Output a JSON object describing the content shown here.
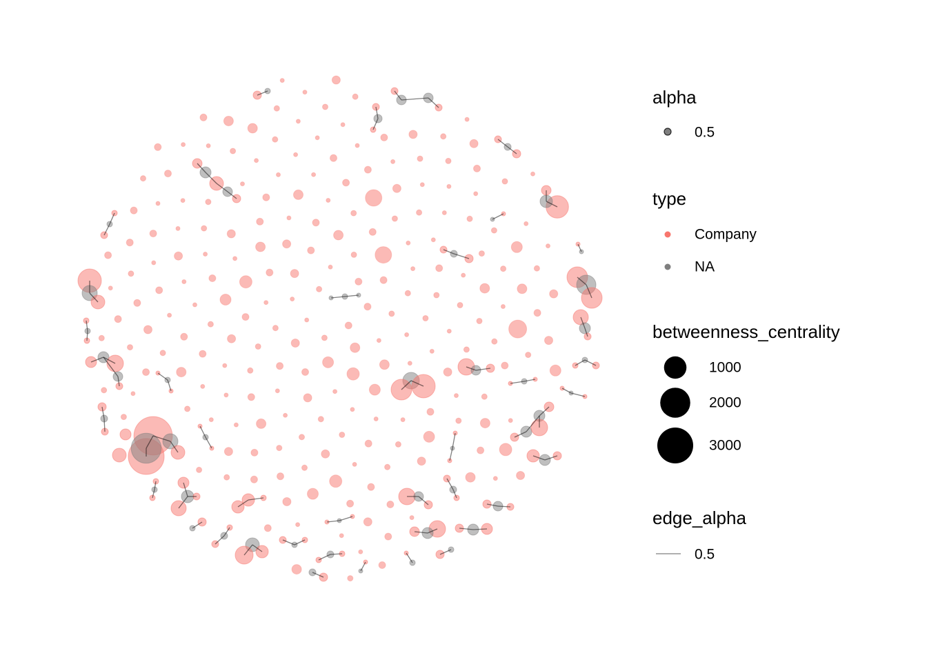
{
  "chart_data": {
    "type": "network",
    "nodes": {
      "type": [
        "Company",
        "Company",
        "NA",
        "NA",
        "Company",
        "Company",
        "Company",
        "Company",
        "NA",
        "Company",
        "Company",
        "NA",
        "Company",
        "NA",
        "Company",
        "Company",
        "Company",
        "NA",
        "Company",
        "Company",
        "NA",
        "Company",
        "NA",
        "Company",
        "NA",
        "Company",
        "Company",
        "NA",
        "Company",
        "NA",
        "NA",
        "Company",
        "Company",
        "Company",
        "NA",
        "Company",
        "NA",
        "Company",
        "Company",
        "NA",
        "Company",
        "Company",
        "Company",
        "Company",
        "NA",
        "Company",
        "Company",
        "NA",
        "Company",
        "Company",
        "NA",
        "Company",
        "NA",
        "NA",
        "Company",
        "Company",
        "Company",
        "NA",
        "Company",
        "Company",
        "NA",
        "Company",
        "Company",
        "NA",
        "Company",
        "Company",
        "NA",
        "NA",
        "NA",
        "NA",
        "Company",
        "Company",
        "NA",
        "Company",
        "Company",
        "NA",
        "Company",
        "NA",
        "Company",
        "Company",
        "NA",
        "Company",
        "Company",
        "NA",
        "Company",
        "Company",
        "NA",
        "Company",
        "Company",
        "NA",
        "Company",
        "Company",
        "NA",
        "Company",
        "Company",
        "NA",
        "Company",
        "Company",
        "NA",
        "Company",
        "Company",
        "NA",
        "Company",
        "Company",
        "NA",
        "Company",
        "Company",
        "NA",
        "Company",
        "NA",
        "Company",
        "NA",
        "Company",
        "Company",
        "NA",
        "Company",
        "Company",
        "NA",
        "Company",
        "Company",
        "Company",
        "NA",
        "NA",
        "Company",
        "Company",
        "Company",
        "Company",
        "Company",
        "NA",
        "Company",
        "Company",
        "NA",
        "Company",
        "NA",
        "Company",
        "NA",
        "Company",
        "NA",
        "Company",
        "NA",
        "Company",
        "Company"
      ],
      "betweenness_centrality": [
        3500,
        3000,
        2000,
        363,
        278,
        278,
        142,
        1111,
        363,
        278,
        816,
        686,
        816,
        459,
        816,
        1111,
        1000,
        204,
        91,
        91,
        142,
        278,
        91,
        51,
        142,
        459,
        142,
        91,
        23,
        91,
        91,
        23,
        23,
        363,
        142,
        23,
        278,
        567,
        204,
        204,
        363,
        142,
        23,
        459,
        91,
        51,
        459,
        91,
        51,
        459,
        142,
        91,
        142,
        142,
        51,
        459,
        91,
        142,
        204,
        51,
        91,
        51,
        23,
        142,
        142,
        51,
        6,
        0,
        0,
        23,
        23,
        51,
        51,
        23,
        6,
        6,
        51,
        23,
        23,
        51,
        6,
        6,
        23,
        6,
        6,
        6,
        23,
        51,
        23,
        6,
        6,
        6,
        6,
        0,
        0,
        6,
        0,
        0,
        6,
        0,
        0,
        6,
        6,
        23,
        0,
        0,
        0,
        0,
        0,
        0,
        0,
        0,
        0,
        0,
        23,
        23,
        6,
        23,
        23,
        6,
        51,
        6,
        6,
        23,
        6,
        204,
        6,
        204,
        23,
        6,
        6,
        23,
        51,
        0,
        0,
        6,
        0,
        6,
        51,
        0,
        0,
        0
      ]
    },
    "isolated_nodes": {
      "type": "Company",
      "betweenness_centrality": [
        23,
        6,
        91,
        0,
        23,
        142,
        6,
        0,
        51,
        23,
        204,
        0,
        6,
        23,
        0,
        91,
        6,
        23,
        0,
        51,
        0,
        23,
        6,
        142,
        0,
        6,
        51,
        23,
        0,
        6,
        459,
        0,
        23,
        6,
        0,
        91,
        23,
        0,
        6,
        51,
        0,
        6,
        23,
        0,
        204,
        6,
        0,
        23,
        51,
        0,
        6,
        91,
        0,
        23,
        6,
        0,
        142,
        23,
        6,
        0,
        51,
        0,
        6,
        23,
        0,
        6,
        91,
        0,
        23,
        6,
        0,
        51,
        23,
        6,
        0,
        459,
        6,
        23,
        0,
        6,
        91,
        0,
        23,
        6,
        0,
        51,
        6,
        0,
        23,
        142,
        0,
        6,
        23,
        0,
        51,
        6,
        0,
        91,
        23,
        0,
        6,
        23,
        0,
        204,
        6,
        0,
        23,
        51,
        0,
        6,
        23,
        0,
        6,
        91,
        0,
        23,
        6,
        0,
        51,
        23,
        0,
        6,
        142,
        0,
        23,
        6,
        0,
        51,
        6,
        23,
        0,
        91,
        6,
        0,
        23,
        6,
        567,
        0,
        23,
        6,
        51,
        0,
        6,
        23,
        0,
        91,
        6,
        0,
        23,
        51,
        0,
        6,
        23,
        0,
        142,
        6,
        0,
        23,
        6,
        51,
        0,
        23,
        6,
        0,
        91,
        23,
        0,
        6,
        51,
        0,
        23,
        6,
        0,
        204,
        6,
        23,
        0,
        51,
        6,
        0,
        23,
        91,
        0,
        6,
        23,
        0,
        51,
        6,
        0,
        23,
        6,
        0,
        142,
        23,
        0,
        6,
        51,
        0,
        23,
        6,
        0,
        91,
        6,
        23,
        0,
        51,
        6,
        0,
        23,
        6,
        0,
        23,
        6,
        51,
        0,
        91,
        23,
        0,
        6,
        23
      ]
    },
    "legend": {
      "alpha": {
        "title": "alpha",
        "value": 0.5
      },
      "type": {
        "title": "type",
        "levels": [
          {
            "name": "Company",
            "color": "#F8766D"
          },
          {
            "name": "NA",
            "color": "#7F7F7F"
          }
        ]
      },
      "size": {
        "title": "betweenness_centrality",
        "breaks": [
          1000,
          2000,
          3000
        ]
      },
      "edge_alpha": {
        "title": "edge_alpha",
        "value": 0.5
      }
    }
  }
}
